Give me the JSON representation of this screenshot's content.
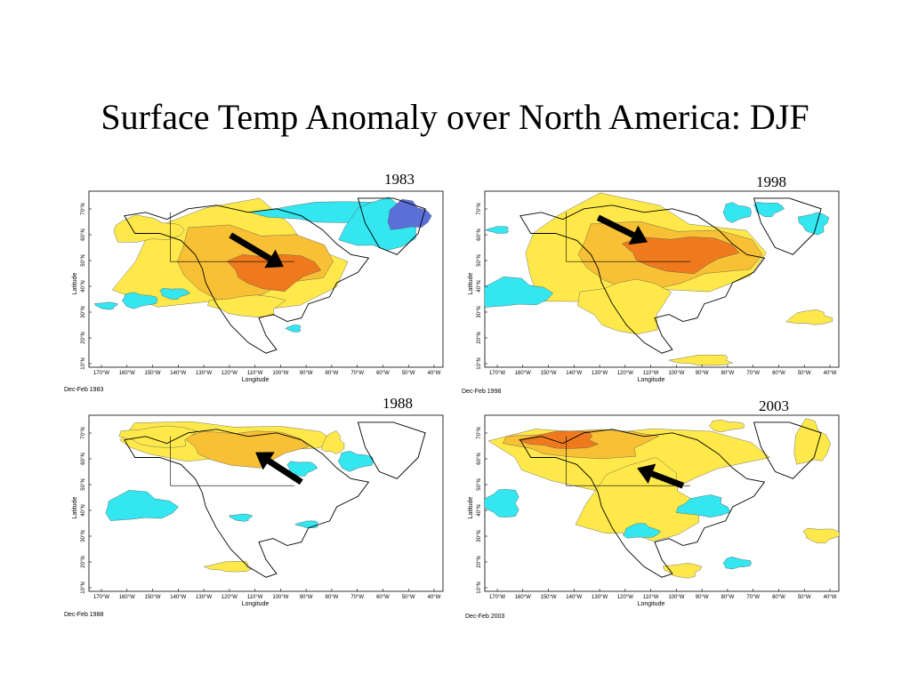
{
  "slide": {
    "title": "Surface Temp Anomaly over North America: DJF"
  },
  "colors": {
    "background": "#ffffff",
    "cold_anomaly": "#33e6f0",
    "strong_cold_anomaly": "#5b6fd8",
    "weak_warm_anomaly": "#ffe94a",
    "warm_anomaly": "#f7c035",
    "strong_warm_anomaly": "#ef7a1e",
    "arrow": "#000000"
  },
  "axes": {
    "x_label": "Longitude",
    "y_label": "Latitude",
    "x_ticks": [
      "170°W",
      "160°W",
      "150°W",
      "140°W",
      "130°W",
      "120°W",
      "110°W",
      "100°W",
      "90°W",
      "80°W",
      "70°W",
      "60°W",
      "50°W",
      "40°W"
    ],
    "y_ticks": [
      "70°N",
      "60°N",
      "50°N",
      "40°N",
      "30°N",
      "20°N",
      "10°N"
    ]
  },
  "panels": [
    {
      "id": "p1983",
      "year": "1983",
      "caption": "Dec-Feb 1983",
      "arrow_direction": "down-right"
    },
    {
      "id": "p1998",
      "year": "1998",
      "caption": "Dec-Feb 1998",
      "arrow_direction": "down-right"
    },
    {
      "id": "p1988",
      "year": "1988",
      "caption": "Dec-Feb 1988",
      "arrow_direction": "up-left"
    },
    {
      "id": "p2003",
      "year": "2003",
      "caption": "Dec-Feb 2003",
      "arrow_direction": "up-left"
    }
  ]
}
